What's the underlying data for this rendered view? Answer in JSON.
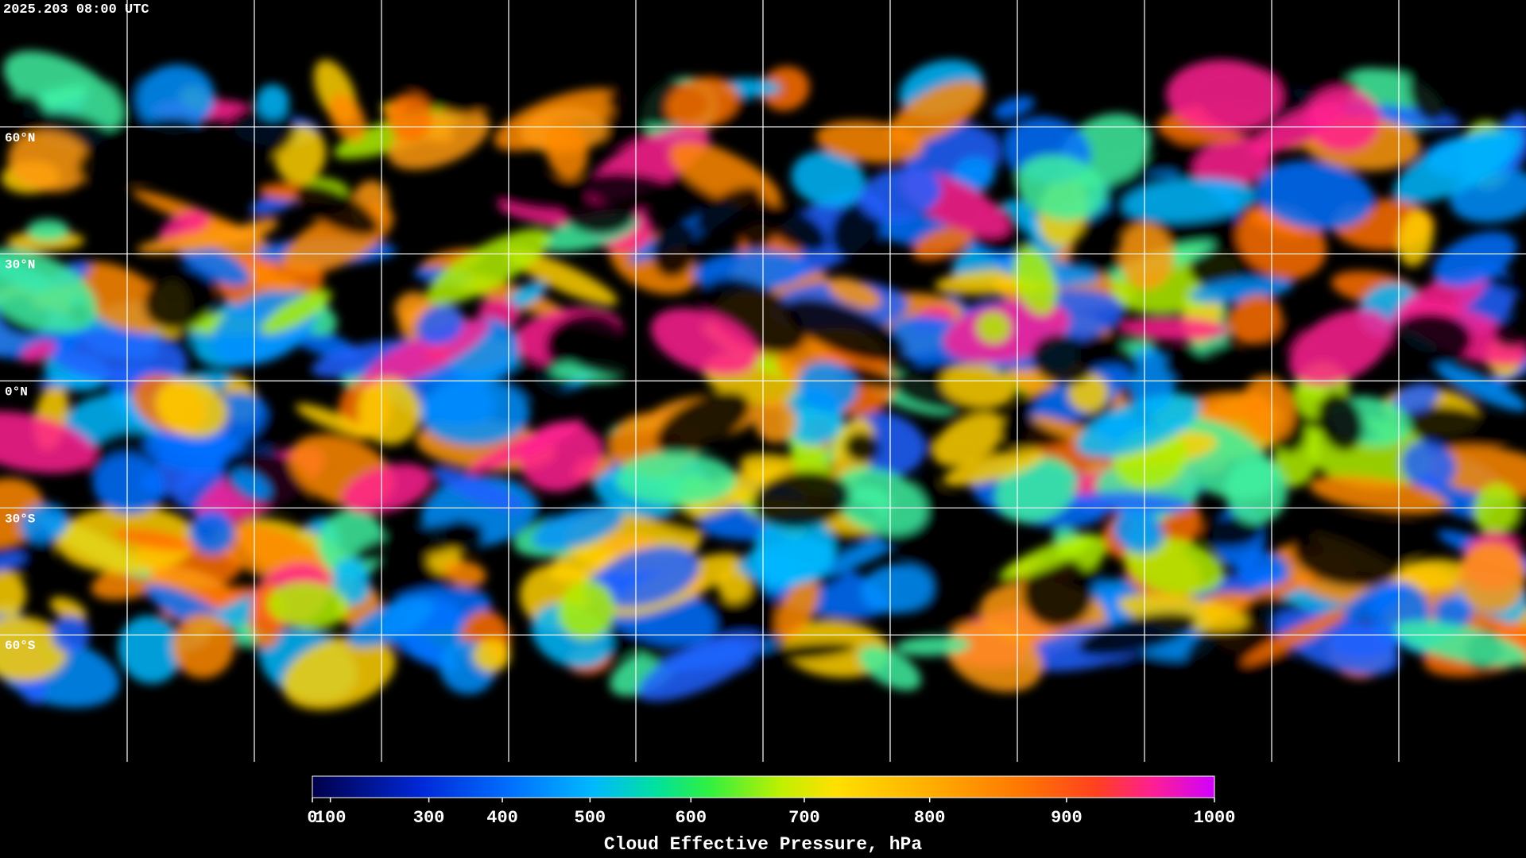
{
  "title": "2025.203 08:00 UTC",
  "map": {
    "lonlim": [
      -180,
      180
    ],
    "latlim": [
      90,
      -90
    ],
    "lon_lines": [
      -150,
      -120,
      -90,
      -60,
      -30,
      0,
      30,
      60,
      90,
      120,
      150
    ],
    "lat_lines": [
      {
        "value": 60,
        "label": "60°N"
      },
      {
        "value": 30,
        "label": "30°N"
      },
      {
        "value": 0,
        "label": "0°N"
      },
      {
        "value": -30,
        "label": "30°S"
      },
      {
        "value": -60,
        "label": "60°S"
      }
    ]
  },
  "colorbar": {
    "label": "Cloud Effective Pressure, hPa",
    "lim": [
      0,
      1000
    ],
    "scale": "power",
    "exponent": 1.7,
    "ticks": [
      0,
      100,
      300,
      400,
      500,
      600,
      700,
      800,
      900,
      1000
    ]
  }
}
